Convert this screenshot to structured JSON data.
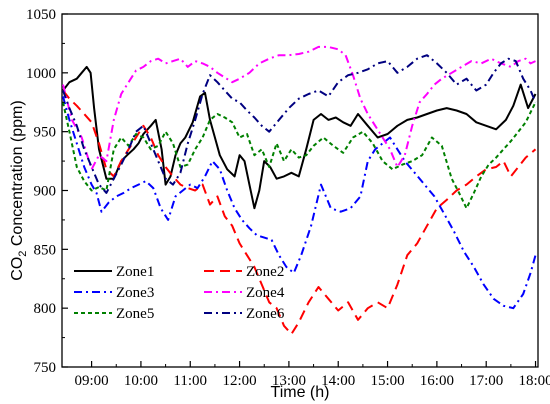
{
  "chart_data": {
    "type": "line",
    "xlabel": "Time (h)",
    "ylabel": {
      "prefix": "CO",
      "subscript": "2",
      "suffix": " Concentration (ppm)"
    },
    "xlim": [
      8.4,
      18.05
    ],
    "ylim": [
      750,
      1050
    ],
    "x_ticks": [
      {
        "value": 9,
        "label": "09:00"
      },
      {
        "value": 10,
        "label": "10:00"
      },
      {
        "value": 11,
        "label": "11:00"
      },
      {
        "value": 12,
        "label": "12:00"
      },
      {
        "value": 13,
        "label": "13:00"
      },
      {
        "value": 14,
        "label": "14:00"
      },
      {
        "value": 15,
        "label": "15:00"
      },
      {
        "value": 16,
        "label": "16:00"
      },
      {
        "value": 17,
        "label": "17:00"
      },
      {
        "value": 18,
        "label": "18:00"
      }
    ],
    "y_ticks": [
      {
        "value": 750,
        "label": "750"
      },
      {
        "value": 800,
        "label": "800"
      },
      {
        "value": 850,
        "label": "850"
      },
      {
        "value": 900,
        "label": "900"
      },
      {
        "value": 950,
        "label": "950"
      },
      {
        "value": 1000,
        "label": "1000"
      },
      {
        "value": 1050,
        "label": "1050"
      }
    ],
    "legend_position": "lower-left",
    "series": [
      {
        "name": "Zone1",
        "color": "#000000",
        "dash": "solid",
        "x": [
          8.42,
          8.55,
          8.7,
          8.8,
          8.9,
          8.98,
          9.05,
          9.15,
          9.3,
          9.45,
          9.6,
          9.72,
          9.85,
          9.95,
          10.05,
          10.2,
          10.3,
          10.42,
          10.5,
          10.6,
          10.7,
          10.8,
          10.9,
          11.05,
          11.2,
          11.3,
          11.4,
          11.5,
          11.6,
          11.75,
          11.9,
          12.0,
          12.1,
          12.2,
          12.3,
          12.4,
          12.5,
          12.62,
          12.75,
          12.9,
          13.05,
          13.2,
          13.35,
          13.5,
          13.65,
          13.8,
          13.95,
          14.1,
          14.25,
          14.4,
          14.6,
          14.8,
          15.0,
          15.2,
          15.4,
          15.6,
          15.8,
          16.0,
          16.2,
          16.4,
          16.6,
          16.8,
          17.0,
          17.2,
          17.4,
          17.55,
          17.7,
          17.85,
          18.0
        ],
        "y": [
          985,
          992,
          995,
          1000,
          1005,
          1000,
          970,
          935,
          910,
          910,
          925,
          930,
          935,
          940,
          948,
          955,
          960,
          935,
          905,
          912,
          930,
          940,
          945,
          958,
          980,
          983,
          960,
          945,
          930,
          918,
          912,
          930,
          925,
          905,
          885,
          900,
          925,
          920,
          910,
          912,
          915,
          912,
          935,
          960,
          965,
          960,
          962,
          958,
          955,
          965,
          955,
          945,
          948,
          955,
          960,
          962,
          965,
          968,
          970,
          968,
          965,
          958,
          955,
          952,
          960,
          972,
          990,
          970,
          982
        ]
      },
      {
        "name": "Zone2",
        "color": "#ff0000",
        "dash": "long",
        "x": [
          8.42,
          8.55,
          8.7,
          8.85,
          9.0,
          9.15,
          9.3,
          9.45,
          9.6,
          9.75,
          9.9,
          10.05,
          10.2,
          10.35,
          10.5,
          10.65,
          10.8,
          10.95,
          11.1,
          11.25,
          11.4,
          11.55,
          11.7,
          11.85,
          12.0,
          12.15,
          12.3,
          12.45,
          12.6,
          12.75,
          12.9,
          13.05,
          13.2,
          13.4,
          13.6,
          13.8,
          14.0,
          14.2,
          14.4,
          14.6,
          14.8,
          15.0,
          15.2,
          15.4,
          15.6,
          15.8,
          16.0,
          16.2,
          16.4,
          16.6,
          16.8,
          17.0,
          17.2,
          17.35,
          17.5,
          17.65,
          17.8,
          18.0
        ],
        "y": [
          985,
          978,
          972,
          965,
          958,
          940,
          918,
          912,
          925,
          935,
          945,
          955,
          945,
          930,
          920,
          912,
          905,
          902,
          900,
          905,
          888,
          895,
          878,
          870,
          855,
          845,
          835,
          820,
          805,
          800,
          785,
          778,
          788,
          805,
          818,
          808,
          798,
          805,
          790,
          800,
          805,
          800,
          820,
          845,
          855,
          870,
          885,
          892,
          900,
          905,
          912,
          918,
          920,
          925,
          912,
          920,
          928,
          935
        ]
      },
      {
        "name": "Zone3",
        "color": "#0000ff",
        "dash": "dashdot",
        "x": [
          8.42,
          8.55,
          8.7,
          8.85,
          9.0,
          9.1,
          9.2,
          9.35,
          9.5,
          9.65,
          9.8,
          9.95,
          10.1,
          10.25,
          10.4,
          10.55,
          10.7,
          10.85,
          11.0,
          11.15,
          11.3,
          11.45,
          11.6,
          11.75,
          11.9,
          12.05,
          12.2,
          12.35,
          12.5,
          12.65,
          12.8,
          12.95,
          13.1,
          13.25,
          13.45,
          13.65,
          13.85,
          14.05,
          14.25,
          14.45,
          14.6,
          14.75,
          14.9,
          15.05,
          15.2,
          15.35,
          15.55,
          15.75,
          15.95,
          16.15,
          16.35,
          16.55,
          16.75,
          16.95,
          17.15,
          17.35,
          17.55,
          17.75,
          17.9,
          18.0
        ],
        "y": [
          980,
          960,
          940,
          920,
          905,
          898,
          882,
          890,
          895,
          898,
          902,
          905,
          908,
          902,
          885,
          875,
          895,
          900,
          905,
          902,
          912,
          925,
          918,
          900,
          885,
          875,
          868,
          862,
          860,
          858,
          845,
          835,
          830,
          845,
          870,
          905,
          885,
          882,
          885,
          895,
          925,
          935,
          940,
          945,
          935,
          925,
          915,
          905,
          895,
          880,
          865,
          848,
          835,
          820,
          808,
          802,
          800,
          812,
          830,
          845
        ]
      },
      {
        "name": "Zone4",
        "color": "#ff00ff",
        "dash": "dashdot",
        "x": [
          8.42,
          8.6,
          8.8,
          9.0,
          9.15,
          9.3,
          9.45,
          9.6,
          9.75,
          9.9,
          10.05,
          10.2,
          10.35,
          10.5,
          10.65,
          10.8,
          10.95,
          11.1,
          11.25,
          11.4,
          11.55,
          11.7,
          11.85,
          12.0,
          12.2,
          12.4,
          12.6,
          12.8,
          13.0,
          13.2,
          13.4,
          13.6,
          13.8,
          14.0,
          14.15,
          14.3,
          14.45,
          14.6,
          14.75,
          14.9,
          15.05,
          15.2,
          15.35,
          15.5,
          15.65,
          15.8,
          15.95,
          16.1,
          16.3,
          16.5,
          16.7,
          16.9,
          17.1,
          17.3,
          17.5,
          17.65,
          17.8,
          17.9,
          18.0
        ],
        "y": [
          990,
          960,
          945,
          918,
          930,
          925,
          960,
          982,
          992,
          1002,
          1005,
          1010,
          1012,
          1008,
          1010,
          1012,
          1005,
          1010,
          1008,
          1005,
          1000,
          996,
          992,
          995,
          1000,
          1008,
          1012,
          1015,
          1015,
          1016,
          1018,
          1022,
          1022,
          1020,
          1015,
          998,
          978,
          965,
          955,
          945,
          935,
          920,
          930,
          955,
          975,
          982,
          990,
          995,
          1000,
          1005,
          1010,
          1008,
          1012,
          1008,
          1005,
          1010,
          1012,
          1008,
          1010
        ]
      },
      {
        "name": "Zone5",
        "color": "#008000",
        "dash": "dotted",
        "x": [
          8.42,
          8.55,
          8.7,
          8.85,
          9.0,
          9.15,
          9.3,
          9.45,
          9.6,
          9.75,
          9.9,
          10.05,
          10.2,
          10.35,
          10.5,
          10.65,
          10.8,
          10.95,
          11.1,
          11.25,
          11.4,
          11.55,
          11.7,
          11.85,
          12.0,
          12.15,
          12.3,
          12.45,
          12.6,
          12.75,
          12.9,
          13.05,
          13.2,
          13.35,
          13.5,
          13.7,
          13.9,
          14.1,
          14.3,
          14.5,
          14.7,
          14.9,
          15.1,
          15.3,
          15.5,
          15.7,
          15.9,
          16.1,
          16.3,
          16.45,
          16.6,
          16.75,
          16.9,
          17.05,
          17.2,
          17.35,
          17.5,
          17.65,
          17.8,
          18.0
        ],
        "y": [
          975,
          950,
          920,
          908,
          900,
          903,
          900,
          935,
          945,
          938,
          948,
          945,
          935,
          938,
          950,
          940,
          920,
          922,
          935,
          945,
          960,
          965,
          962,
          958,
          945,
          948,
          930,
          935,
          920,
          940,
          925,
          935,
          928,
          930,
          938,
          945,
          938,
          932,
          945,
          950,
          940,
          925,
          918,
          922,
          925,
          930,
          945,
          938,
          910,
          898,
          885,
          898,
          912,
          922,
          928,
          935,
          942,
          950,
          958,
          975
        ]
      },
      {
        "name": "Zone6",
        "color": "#000080",
        "dash": "dashdot",
        "x": [
          8.42,
          8.55,
          8.7,
          8.85,
          9.0,
          9.15,
          9.3,
          9.45,
          9.6,
          9.75,
          9.9,
          10.05,
          10.2,
          10.35,
          10.5,
          10.65,
          10.8,
          10.95,
          11.1,
          11.25,
          11.4,
          11.55,
          11.7,
          11.85,
          12.0,
          12.15,
          12.3,
          12.45,
          12.6,
          12.8,
          13.0,
          13.2,
          13.4,
          13.6,
          13.8,
          14.0,
          14.2,
          14.4,
          14.6,
          14.8,
          15.0,
          15.2,
          15.4,
          15.6,
          15.8,
          16.0,
          16.2,
          16.4,
          16.6,
          16.8,
          17.0,
          17.15,
          17.3,
          17.45,
          17.6,
          17.75,
          17.9,
          18.0
        ],
        "y": [
          985,
          970,
          955,
          935,
          920,
          905,
          898,
          910,
          922,
          935,
          950,
          955,
          940,
          925,
          910,
          905,
          915,
          940,
          960,
          982,
          998,
          992,
          985,
          978,
          975,
          968,
          962,
          955,
          950,
          960,
          970,
          978,
          982,
          985,
          980,
          992,
          998,
          1000,
          1003,
          1008,
          1010,
          1000,
          1005,
          1012,
          1015,
          1008,
          1000,
          990,
          995,
          985,
          990,
          1000,
          1008,
          1012,
          1010,
          995,
          985,
          975
        ]
      }
    ]
  }
}
